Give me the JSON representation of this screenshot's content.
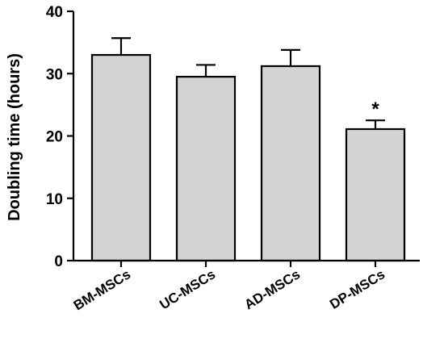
{
  "chart_data": {
    "type": "bar",
    "categories": [
      "BM-MSCs",
      "UC-MSCs",
      "AD-MSCs",
      "DP-MSCs"
    ],
    "values": [
      33.0,
      29.5,
      31.2,
      21.1
    ],
    "errors": [
      2.7,
      1.9,
      2.6,
      1.4
    ],
    "annotations": [
      "",
      "",
      "",
      "*"
    ],
    "title": "",
    "xlabel": "",
    "ylabel": "Doubling time (hours)",
    "ylim": [
      0,
      40
    ],
    "yticks": [
      0,
      10,
      20,
      30,
      40
    ],
    "bar_color": "#d3d3d3",
    "grid": false
  }
}
